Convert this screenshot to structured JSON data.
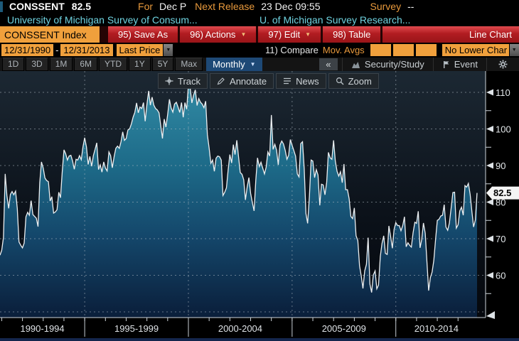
{
  "header": {
    "ticker": "CONSSENT",
    "value": "82.5",
    "for_label": "For",
    "for_value": "Dec P",
    "next_release_label": "Next Release",
    "next_release_value": "23 Dec 09:55",
    "survey_label": "Survey",
    "survey_value": "--",
    "desc_left": "University of Michigan Survey of Consum...",
    "desc_right": "U. of Michigan Survey Research..."
  },
  "toolbar": {
    "security_tab": "CONSSENT Index",
    "save_as": "95) Save As",
    "actions": "96) Actions",
    "edit": "97) Edit",
    "table": "98) Table",
    "chart_type": "Line Chart"
  },
  "controls": {
    "date_from": "12/31/1990",
    "date_separator": "-",
    "date_to": "12/31/2013",
    "field": "Last Price",
    "compare_label": "11) Compare",
    "mov_avgs_label": "Mov. Avgs",
    "lower_chart": "No Lower Char"
  },
  "periods": {
    "items": [
      "1D",
      "3D",
      "1M",
      "6M",
      "YTD",
      "1Y",
      "5Y",
      "Max"
    ],
    "frequency": "Monthly",
    "caret": "▼"
  },
  "right_tools": {
    "collapse": "«",
    "security_study": "Security/Study",
    "event": "Event"
  },
  "chart_toolbar": {
    "track": "Track",
    "annotate": "Annotate",
    "news": "News",
    "zoom": "Zoom"
  },
  "colors": {
    "amber": "#f0a03c",
    "red_button": "#b11c21",
    "cyan_text": "#6fd3e0",
    "frequency_blue": "#1e4976",
    "line": "#eceff1",
    "fill_top": "#318aa4",
    "fill_bottom": "#0a1e3a"
  },
  "chart_data": {
    "type": "area",
    "title": "University of Michigan Survey of Consumer Sentiment (CONSSENT Index)",
    "field": "Last Price",
    "frequency": "Monthly",
    "x_start": "12/31/1990",
    "x_end": "12/31/2013",
    "last_value": 82.5,
    "ylim_visible": [
      50,
      115
    ],
    "y_ticks": [
      60,
      70,
      80,
      90,
      100,
      110
    ],
    "y_gridlines": [
      50,
      60,
      70,
      80,
      90,
      100,
      110
    ],
    "x_labels": [
      "1990-1994",
      "1995-1999",
      "2000-2004",
      "2005-2009",
      "2010-2014"
    ],
    "x_section_boundaries_month_index": [
      49,
      109,
      169,
      229
    ],
    "series": [
      {
        "name": "CONSSENT Index - Last Price (monthly, Dec 1990 - Dec 2013)",
        "values": [
          65.5,
          66.8,
          70.4,
          87.7,
          81.8,
          78.3,
          82.1,
          82.9,
          82.0,
          83.0,
          78.3,
          69.1,
          68.2,
          67.5,
          68.8,
          76.0,
          77.2,
          76.4,
          80.4,
          76.6,
          76.1,
          75.6,
          73.3,
          85.3,
          91.0,
          89.3,
          86.6,
          85.9,
          85.6,
          80.3,
          81.5,
          77.0,
          77.3,
          77.9,
          82.7,
          81.2,
          88.2,
          94.3,
          93.2,
          91.5,
          92.6,
          92.8,
          91.2,
          89.0,
          91.7,
          91.5,
          92.7,
          91.6,
          95.1,
          97.6,
          95.1,
          90.3,
          92.5,
          89.8,
          92.7,
          94.4,
          96.2,
          88.9,
          90.2,
          88.2,
          91.0,
          89.3,
          88.5,
          93.7,
          92.7,
          89.4,
          92.4,
          94.7,
          95.3,
          94.7,
          96.5,
          99.2,
          96.9,
          97.4,
          99.7,
          100.0,
          101.4,
          103.2,
          104.5,
          107.1,
          104.4,
          106.0,
          105.6,
          107.2,
          102.1,
          106.6,
          110.4,
          106.5,
          108.7,
          106.5,
          105.6,
          105.2,
          104.4,
          100.9,
          97.4,
          102.7,
          100.5,
          103.9,
          108.1,
          105.7,
          104.6,
          106.8,
          107.3,
          106.0,
          104.5,
          107.2,
          103.2,
          107.2,
          105.4,
          112.0,
          111.3,
          107.1,
          109.2,
          110.7,
          106.4,
          108.3,
          107.3,
          106.8,
          105.8,
          107.6,
          98.4,
          94.7,
          90.6,
          91.5,
          88.4,
          92.0,
          92.6,
          92.4,
          91.5,
          81.8,
          82.7,
          83.9,
          88.8,
          93.0,
          90.7,
          95.7,
          93.0,
          96.9,
          92.4,
          88.1,
          87.6,
          86.1,
          80.6,
          84.2,
          86.7,
          82.4,
          79.9,
          77.6,
          86.0,
          92.1,
          89.7,
          90.9,
          89.3,
          87.7,
          89.6,
          93.7,
          92.6,
          103.8,
          94.4,
          95.8,
          94.2,
          90.2,
          95.6,
          96.7,
          95.9,
          94.2,
          91.7,
          92.8,
          97.1,
          95.5,
          94.1,
          92.6,
          87.7,
          86.9,
          96.0,
          96.5,
          89.1,
          76.9,
          74.2,
          81.6,
          91.5,
          91.2,
          86.7,
          88.9,
          87.4,
          79.1,
          84.9,
          84.7,
          82.0,
          85.4,
          93.6,
          92.1,
          91.7,
          96.9,
          91.3,
          88.4,
          87.1,
          88.3,
          85.3,
          90.4,
          83.4,
          83.4,
          80.9,
          76.1,
          75.5,
          78.4,
          70.8,
          69.5,
          62.6,
          59.8,
          56.4,
          61.2,
          63.0,
          70.3,
          57.6,
          55.3,
          60.1,
          61.2,
          56.3,
          57.3,
          65.1,
          68.7,
          70.8,
          66.0,
          65.7,
          73.5,
          70.6,
          67.4,
          72.5,
          74.4,
          73.6,
          73.6,
          72.2,
          73.6,
          76.0,
          67.8,
          68.9,
          68.2,
          67.7,
          71.6,
          74.5,
          74.2,
          77.5,
          67.5,
          69.8,
          74.3,
          71.5,
          63.7,
          55.8,
          59.4,
          60.9,
          64.1,
          69.9,
          75.0,
          75.3,
          76.2,
          76.4,
          79.3,
          73.2,
          72.3,
          74.3,
          78.3,
          82.6,
          82.7,
          72.9,
          73.8,
          77.6,
          78.6,
          76.4,
          84.5,
          84.1,
          85.1,
          82.1,
          77.5,
          73.2,
          75.1,
          82.5
        ]
      }
    ]
  }
}
